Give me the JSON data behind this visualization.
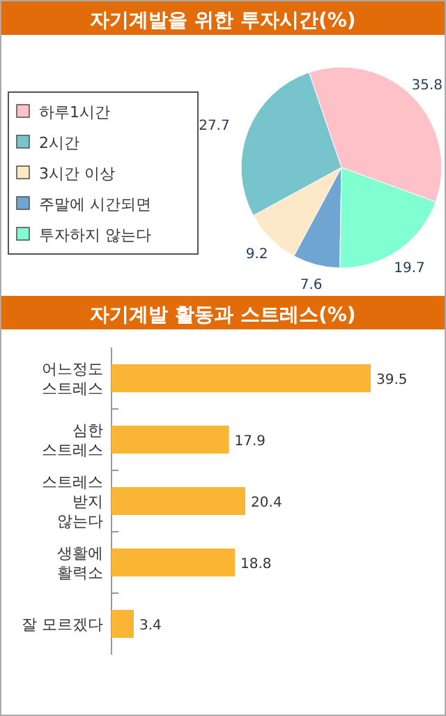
{
  "chart_data": [
    {
      "type": "pie",
      "title": "자기계발을 위한 투자시간(%)",
      "categories": [
        "하루1시간",
        "2시간",
        "3시간 이상",
        "주말에 시간되면",
        "투자하지 않는다"
      ],
      "values": [
        35.8,
        27.7,
        9.2,
        7.6,
        19.7
      ],
      "colors": [
        "#ffc1c8",
        "#78c4cc",
        "#fde8c8",
        "#6ea5d3",
        "#80ffd2"
      ],
      "data_labels": true,
      "legend": "left"
    },
    {
      "type": "bar",
      "orientation": "horizontal",
      "title": "자기계발 활동과 스트레스(%)",
      "categories": [
        "어느정도\n스트레스",
        "심한\n스트레스",
        "스트레스\n받지\n않는다",
        "생활에\n활력소",
        "잘 모르겠다"
      ],
      "values": [
        39.5,
        17.9,
        20.4,
        18.8,
        3.4
      ],
      "color": "#fbb534",
      "data_labels": true
    }
  ]
}
